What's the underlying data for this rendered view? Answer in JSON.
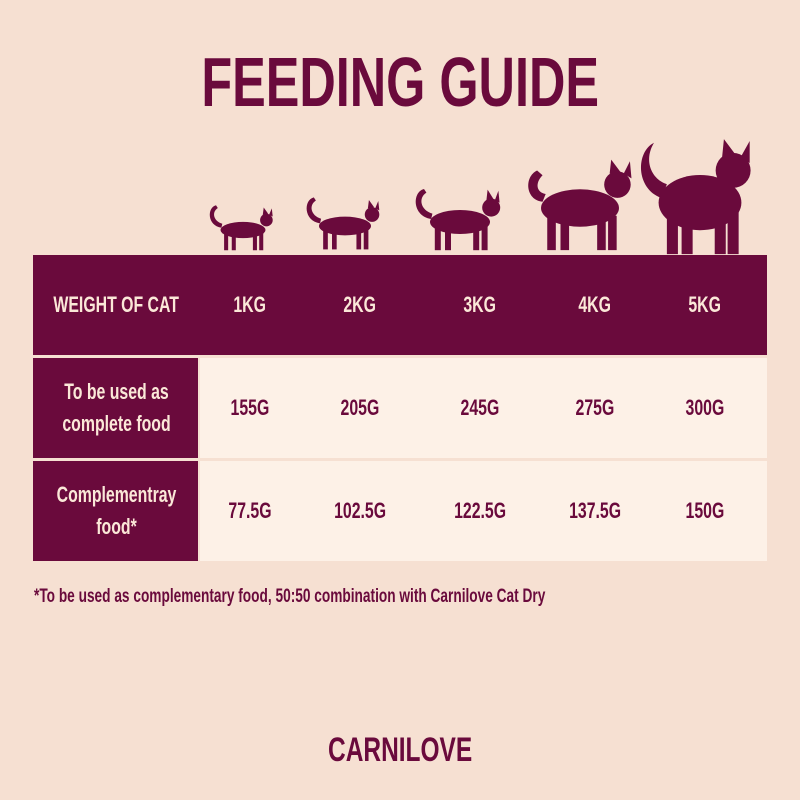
{
  "header": {
    "title": "FEEDING GUIDE"
  },
  "table": {
    "header": [
      "WEIGHT OF CAT",
      "1KG",
      "2KG",
      "3KG",
      "4KG",
      "5KG"
    ],
    "rows": [
      [
        "To be used as complete food",
        "155G",
        "205G",
        "245G",
        "275G",
        "300G"
      ],
      [
        "Complementray food*",
        "77.5G",
        "102.5G",
        "122.5G",
        "137.5G",
        "150G"
      ]
    ]
  },
  "footnote": "*To be used as complementary food, 50:50 combination with Carnilove Cat Dry",
  "logo": "CARNILOVE"
}
